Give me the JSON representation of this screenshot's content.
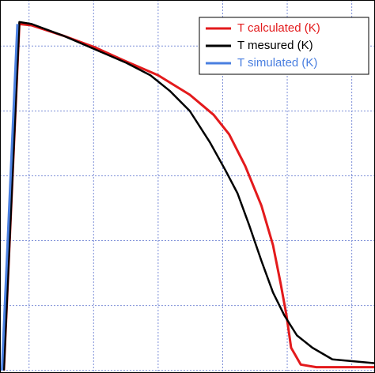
{
  "chart_data": {
    "type": "line",
    "xlim": [
      -0.45,
      5.36
    ],
    "ylim": [
      -0.04,
      5.71
    ],
    "xticks": [
      0,
      1,
      2,
      3,
      4,
      5
    ],
    "yticks": [
      0,
      1,
      2,
      3,
      4,
      5
    ],
    "grid": true,
    "legend": "upper right",
    "series": [
      {
        "name": "T calculated (K)",
        "color": "#e31a1c",
        "x": [
          -0.39,
          -0.15,
          0.04,
          0.53,
          1.02,
          1.51,
          2.0,
          2.49,
          2.86,
          3.1,
          3.35,
          3.6,
          3.78,
          3.9,
          3.99,
          4.06,
          4.21,
          4.45,
          5.36
        ],
        "values": [
          0,
          5.34,
          5.32,
          5.16,
          4.98,
          4.76,
          4.55,
          4.25,
          3.94,
          3.64,
          3.15,
          2.54,
          1.93,
          1.33,
          0.84,
          0.35,
          0.09,
          0.05,
          0.05
        ]
      },
      {
        "name": "T mesured (K)",
        "color": "#000000",
        "x": [
          -0.39,
          -0.15,
          0.04,
          0.53,
          1.02,
          1.51,
          1.88,
          2.18,
          2.49,
          2.8,
          3.04,
          3.23,
          3.41,
          3.6,
          3.78,
          3.96,
          4.15,
          4.39,
          4.7,
          5.36
        ],
        "values": [
          0,
          5.37,
          5.34,
          5.16,
          4.95,
          4.74,
          4.55,
          4.31,
          4.0,
          3.52,
          3.09,
          2.73,
          2.24,
          1.69,
          1.2,
          0.84,
          0.54,
          0.35,
          0.17,
          0.11
        ]
      },
      {
        "name": "T simulated (K)",
        "color": "#4a7fe0",
        "x": [
          -0.42,
          -0.18
        ],
        "values": [
          0,
          5.34
        ]
      }
    ]
  }
}
